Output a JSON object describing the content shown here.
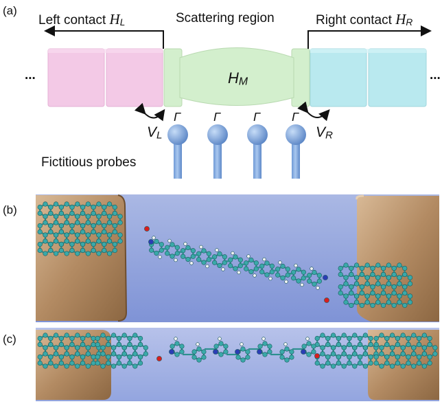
{
  "panel_a": {
    "label": "(a)",
    "left_contact": {
      "text": "Left contact",
      "symbol": "H",
      "sub": "L"
    },
    "scattering_region": "Scattering region",
    "right_contact": {
      "text": "Right contact",
      "symbol": "H",
      "sub": "R"
    },
    "ellipsis": "...",
    "center_symbol": {
      "symbol": "H",
      "sub": "M"
    },
    "gamma": "Γ",
    "coupling_left": {
      "symbol": "V",
      "sub": "L"
    },
    "coupling_right": {
      "symbol": "V",
      "sub": "R"
    },
    "probes_label": "Fictitious probes",
    "colors": {
      "left_lead": "#f3c9e6",
      "center": "#d3efcd",
      "right_lead": "#b9e9ef",
      "probe": "#87b1e4"
    }
  },
  "panel_b": {
    "label": "(b)"
  },
  "panel_c": {
    "label": "(c)"
  },
  "colors": {
    "electrode": "#b8916a",
    "carbon": "#3aa9a9",
    "hydrogen": "#f2f2f2",
    "nitrogen": "#2b3db5",
    "oxygen": "#d81e1e"
  }
}
